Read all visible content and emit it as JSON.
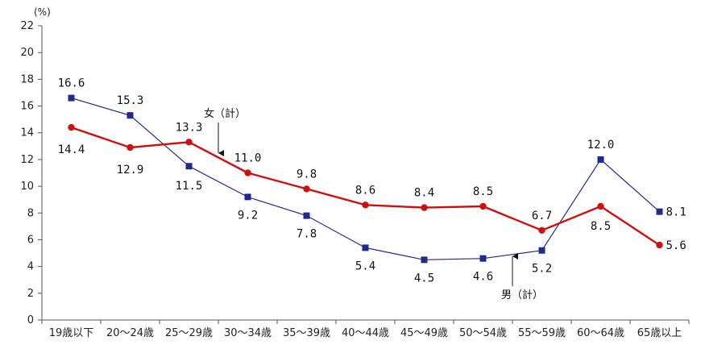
{
  "chart_data": {
    "type": "line",
    "title": "",
    "xlabel": "",
    "ylabel": "",
    "y_unit": "(%)",
    "ylim": [
      0,
      22
    ],
    "ytick_step": 2,
    "yticks": [
      "0",
      "2",
      "4",
      "6",
      "8",
      "10",
      "12",
      "14",
      "16",
      "18",
      "20",
      "22"
    ],
    "grid": false,
    "categories": [
      "19歳以下",
      "20～24歳",
      "25～29歳",
      "30～34歳",
      "35～39歳",
      "40～44歳",
      "45～49歳",
      "50～54歳",
      "55～59歳",
      "60～64歳",
      "65歳以上"
    ],
    "series": [
      {
        "name": "男（計）",
        "color": "#1f2a8c",
        "marker": "square",
        "values": [
          16.6,
          15.3,
          11.5,
          9.2,
          7.8,
          5.4,
          4.5,
          4.6,
          5.2,
          12.0,
          8.1
        ],
        "labels": [
          "16.6",
          "15.3",
          "11.5",
          "9.2",
          "7.8",
          "5.4",
          "4.5",
          "4.6",
          "5.2",
          "12.0",
          "8.1"
        ]
      },
      {
        "name": "女（計）",
        "color": "#cc1111",
        "marker": "circle",
        "values": [
          14.4,
          12.9,
          13.3,
          11.0,
          9.8,
          8.6,
          8.4,
          8.5,
          6.7,
          8.5,
          5.6
        ],
        "labels": [
          "14.4",
          "12.9",
          "13.3",
          "11.0",
          "9.8",
          "8.6",
          "8.4",
          "8.5",
          "6.7",
          "8.5",
          "5.6"
        ]
      }
    ],
    "annotations": [
      {
        "text": "女（計）",
        "series": 1,
        "category": "30～34歳"
      },
      {
        "text": "男（計）",
        "series": 0,
        "category": "50～54歳"
      }
    ]
  }
}
